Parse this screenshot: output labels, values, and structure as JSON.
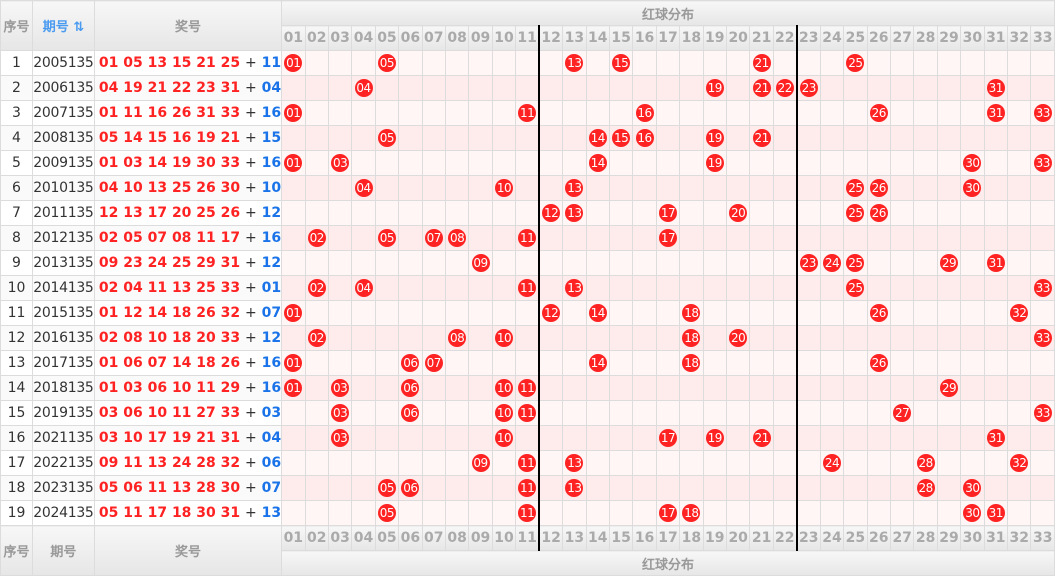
{
  "header": {
    "col_index": "序号",
    "col_period": "期号",
    "sort_icon": "sort-icon",
    "sort_glyph": "⇅",
    "col_numbers": "奖号",
    "red_section": "红球分布"
  },
  "footer": {
    "col_index": "序号",
    "col_period": "期号",
    "col_numbers": "奖号",
    "red_section": "红球分布"
  },
  "columns": [
    "01",
    "02",
    "03",
    "04",
    "05",
    "06",
    "07",
    "08",
    "09",
    "10",
    "11",
    "12",
    "13",
    "14",
    "15",
    "16",
    "17",
    "18",
    "19",
    "20",
    "21",
    "22",
    "23",
    "24",
    "25",
    "26",
    "27",
    "28",
    "29",
    "30",
    "31",
    "32",
    "33"
  ],
  "plus": "+",
  "colors": {
    "ball": "#ff2222",
    "red_text": "#ff2222",
    "blue_text": "#1a73e8"
  },
  "rows": [
    {
      "index": "1",
      "period": "2005135",
      "red": [
        "01",
        "05",
        "13",
        "15",
        "21",
        "25"
      ],
      "blue": "11"
    },
    {
      "index": "2",
      "period": "2006135",
      "red": [
        "04",
        "19",
        "21",
        "22",
        "23",
        "31"
      ],
      "blue": "04"
    },
    {
      "index": "3",
      "period": "2007135",
      "red": [
        "01",
        "11",
        "16",
        "26",
        "31",
        "33"
      ],
      "blue": "16"
    },
    {
      "index": "4",
      "period": "2008135",
      "red": [
        "05",
        "14",
        "15",
        "16",
        "19",
        "21"
      ],
      "blue": "15"
    },
    {
      "index": "5",
      "period": "2009135",
      "red": [
        "01",
        "03",
        "14",
        "19",
        "30",
        "33"
      ],
      "blue": "16"
    },
    {
      "index": "6",
      "period": "2010135",
      "red": [
        "04",
        "10",
        "13",
        "25",
        "26",
        "30"
      ],
      "blue": "10"
    },
    {
      "index": "7",
      "period": "2011135",
      "red": [
        "12",
        "13",
        "17",
        "20",
        "25",
        "26"
      ],
      "blue": "12"
    },
    {
      "index": "8",
      "period": "2012135",
      "red": [
        "02",
        "05",
        "07",
        "08",
        "11",
        "17"
      ],
      "blue": "16"
    },
    {
      "index": "9",
      "period": "2013135",
      "red": [
        "09",
        "23",
        "24",
        "25",
        "29",
        "31"
      ],
      "blue": "12"
    },
    {
      "index": "10",
      "period": "2014135",
      "red": [
        "02",
        "04",
        "11",
        "13",
        "25",
        "33"
      ],
      "blue": "01"
    },
    {
      "index": "11",
      "period": "2015135",
      "red": [
        "01",
        "12",
        "14",
        "18",
        "26",
        "32"
      ],
      "blue": "07"
    },
    {
      "index": "12",
      "period": "2016135",
      "red": [
        "02",
        "08",
        "10",
        "18",
        "20",
        "33"
      ],
      "blue": "12"
    },
    {
      "index": "13",
      "period": "2017135",
      "red": [
        "01",
        "06",
        "07",
        "14",
        "18",
        "26"
      ],
      "blue": "16"
    },
    {
      "index": "14",
      "period": "2018135",
      "red": [
        "01",
        "03",
        "06",
        "10",
        "11",
        "29"
      ],
      "blue": "16"
    },
    {
      "index": "15",
      "period": "2019135",
      "red": [
        "03",
        "06",
        "10",
        "11",
        "27",
        "33"
      ],
      "blue": "03"
    },
    {
      "index": "16",
      "period": "2021135",
      "red": [
        "03",
        "10",
        "17",
        "19",
        "21",
        "31"
      ],
      "blue": "04"
    },
    {
      "index": "17",
      "period": "2022135",
      "red": [
        "09",
        "11",
        "13",
        "24",
        "28",
        "32"
      ],
      "blue": "06"
    },
    {
      "index": "18",
      "period": "2023135",
      "red": [
        "05",
        "06",
        "11",
        "13",
        "28",
        "30"
      ],
      "blue": "07"
    },
    {
      "index": "19",
      "period": "2024135",
      "red": [
        "05",
        "11",
        "17",
        "18",
        "30",
        "31"
      ],
      "blue": "13"
    }
  ]
}
